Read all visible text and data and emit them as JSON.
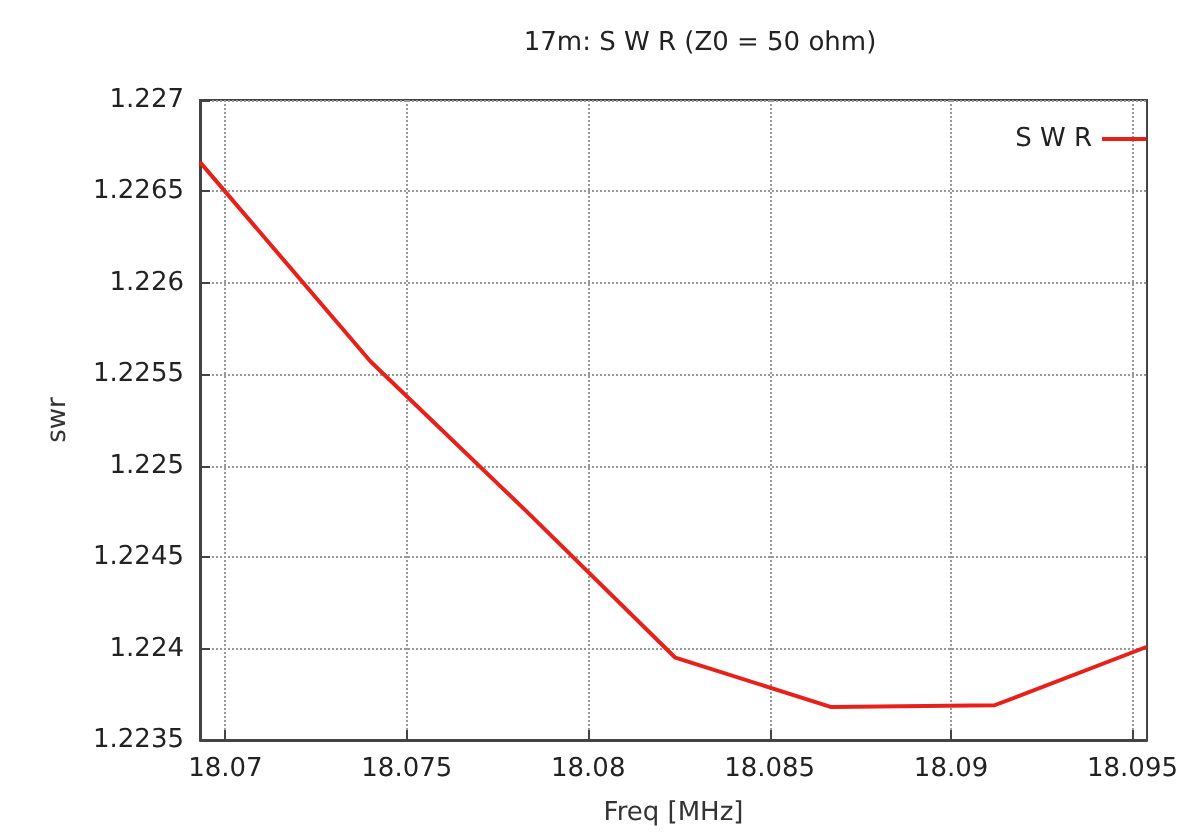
{
  "chart_data": {
    "type": "line",
    "title": "17m: S W R (Z0 = 50 ohm)",
    "xlabel": "Freq [MHz]",
    "ylabel": "swr",
    "x": [
      18.0693,
      18.074,
      18.0783,
      18.0824,
      18.0867,
      18.0912,
      18.0954
    ],
    "series": [
      {
        "name": "S W R",
        "color": "#e8201a",
        "values": [
          1.22666,
          1.22557,
          1.22475,
          1.22395,
          1.22368,
          1.22369,
          1.22401
        ]
      }
    ],
    "xlim": [
      18.0693,
      18.0954
    ],
    "xticks": [
      18.07,
      18.075,
      18.08,
      18.085,
      18.09,
      18.095
    ],
    "ylim": [
      1.2235,
      1.227
    ],
    "yticks": [
      1.2235,
      1.224,
      1.2245,
      1.225,
      1.2255,
      1.226,
      1.2265,
      1.227
    ],
    "grid": true,
    "legend": "top right",
    "marker": "none",
    "line_style": "solid"
  }
}
